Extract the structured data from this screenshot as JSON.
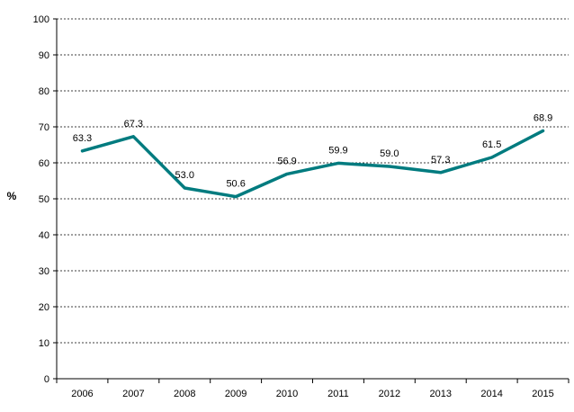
{
  "chart_data": {
    "type": "line",
    "title": "",
    "xlabel": "",
    "ylabel": "%",
    "ylim": [
      0,
      100
    ],
    "ytick_step": 10,
    "grid": "horizontal-dashed",
    "legend": "none",
    "line_color": "#007B7F",
    "categories": [
      "2006",
      "2007",
      "2008",
      "2009",
      "2010",
      "2011",
      "2012",
      "2013",
      "2014",
      "2015"
    ],
    "series": [
      {
        "values": [
          63.3,
          67.3,
          53.0,
          50.6,
          56.9,
          59.9,
          59.0,
          57.3,
          61.5,
          68.9
        ],
        "labels": [
          "63.3",
          "67.3",
          "53.0",
          "50.6",
          "56.9",
          "59.9",
          "59.0",
          "57.3",
          "61.5",
          "68.9"
        ]
      }
    ]
  }
}
